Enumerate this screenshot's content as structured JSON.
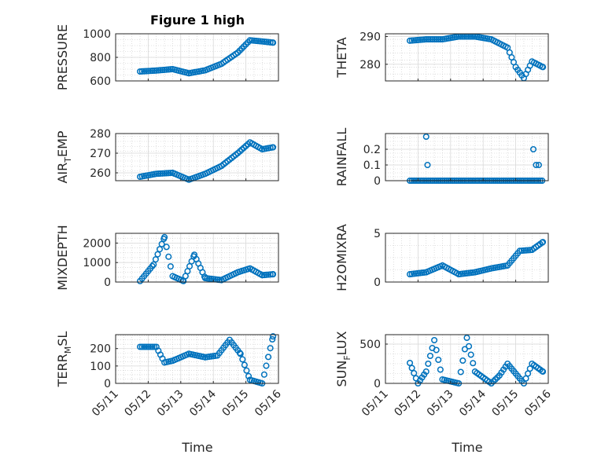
{
  "figure": {
    "xlabel": "Time",
    "x_ticks": [
      "2024-05-11",
      "2024-05-12",
      "2024-05-13",
      "2024-05-14",
      "2024-05-15",
      "2024-05-16"
    ],
    "x_tick_labels": [
      "05/11",
      "05/12",
      "05/13",
      "05/14",
      "05/15",
      "05/16"
    ],
    "marker_color": "#0072BD"
  },
  "chart_data": [
    {
      "type": "scatter",
      "title": "Figure 1 high",
      "ylabel": "PRESSURE",
      "xlim": [
        "2024-05-11",
        "2024-05-16"
      ],
      "ylim": [
        600,
        1000
      ],
      "yticks": [
        600,
        800,
        1000
      ],
      "grid": true,
      "x": [
        "2024-05-11T18:00",
        "2024-05-12T06:00",
        "2024-05-12T18:00",
        "2024-05-13T06:00",
        "2024-05-13T18:00",
        "2024-05-14T06:00",
        "2024-05-14T18:00",
        "2024-05-15T03:00",
        "2024-05-15T12:00",
        "2024-05-15T20:00"
      ],
      "y": [
        680,
        688,
        700,
        665,
        690,
        745,
        840,
        945,
        935,
        925
      ]
    },
    {
      "type": "scatter",
      "title": "",
      "ylabel": "THETA",
      "xlim": [
        "2024-05-11",
        "2024-05-16"
      ],
      "ylim": [
        274,
        291
      ],
      "yticks": [
        280,
        290
      ],
      "grid": true,
      "x": [
        "2024-05-11T18:00",
        "2024-05-12T06:00",
        "2024-05-12T18:00",
        "2024-05-13T06:00",
        "2024-05-13T18:00",
        "2024-05-14T06:00",
        "2024-05-14T18:00",
        "2024-05-15T00:00",
        "2024-05-15T06:00",
        "2024-05-15T12:00",
        "2024-05-15T20:00"
      ],
      "y": [
        288.5,
        289,
        289,
        290,
        290,
        289,
        286,
        279,
        275,
        281,
        279
      ]
    },
    {
      "type": "scatter",
      "title": "",
      "ylabel": "AIR_TEMP",
      "xlim": [
        "2024-05-11",
        "2024-05-16"
      ],
      "ylim": [
        256,
        280
      ],
      "yticks": [
        260,
        270,
        280
      ],
      "grid": true,
      "x": [
        "2024-05-11T18:00",
        "2024-05-12T06:00",
        "2024-05-12T18:00",
        "2024-05-13T06:00",
        "2024-05-13T18:00",
        "2024-05-14T06:00",
        "2024-05-14T18:00",
        "2024-05-15T03:00",
        "2024-05-15T12:00",
        "2024-05-15T20:00"
      ],
      "y": [
        258,
        259.5,
        260,
        256.5,
        259.5,
        263.5,
        270,
        275.5,
        272,
        273
      ]
    },
    {
      "type": "scatter",
      "title": "",
      "ylabel": "RAINFALL",
      "xlim": [
        "2024-05-11",
        "2024-05-16"
      ],
      "ylim": [
        0,
        0.3
      ],
      "yticks": [
        0,
        0.1,
        0.2
      ],
      "grid": true,
      "x": [
        "2024-05-12T06:00",
        "2024-05-12T07:00",
        "2024-05-15T13:00",
        "2024-05-15T15:00",
        "2024-05-15T17:00"
      ],
      "y": [
        0.28,
        0.1,
        0.2,
        0.1,
        0.1
      ],
      "baseline_zero": true
    },
    {
      "type": "scatter",
      "title": "",
      "ylabel": "MIXDEPTH",
      "xlim": [
        "2024-05-11",
        "2024-05-16"
      ],
      "ylim": [
        0,
        2500
      ],
      "yticks": [
        0,
        1000,
        2000
      ],
      "grid": true,
      "x": [
        "2024-05-11T18:00",
        "2024-05-12T04:00",
        "2024-05-12T12:00",
        "2024-05-12T18:00",
        "2024-05-13T02:00",
        "2024-05-13T10:00",
        "2024-05-13T18:00",
        "2024-05-14T06:00",
        "2024-05-14T18:00",
        "2024-05-15T03:00",
        "2024-05-15T12:00",
        "2024-05-15T20:00"
      ],
      "y": [
        50,
        900,
        2300,
        300,
        50,
        1400,
        200,
        100,
        500,
        700,
        350,
        400
      ]
    },
    {
      "type": "scatter",
      "title": "",
      "ylabel": "H2OMIXRA",
      "xlim": [
        "2024-05-11",
        "2024-05-16"
      ],
      "ylim": [
        0,
        5
      ],
      "yticks": [
        0,
        5
      ],
      "grid": true,
      "x": [
        "2024-05-11T18:00",
        "2024-05-12T06:00",
        "2024-05-12T18:00",
        "2024-05-13T06:00",
        "2024-05-13T18:00",
        "2024-05-14T06:00",
        "2024-05-14T18:00",
        "2024-05-15T03:00",
        "2024-05-15T12:00",
        "2024-05-15T20:00"
      ],
      "y": [
        0.8,
        1.0,
        1.7,
        0.8,
        1.0,
        1.4,
        1.7,
        3.2,
        3.3,
        4.1
      ]
    },
    {
      "type": "scatter",
      "title": "",
      "ylabel": "TERR_MSL",
      "xlim": [
        "2024-05-11",
        "2024-05-16"
      ],
      "ylim": [
        0,
        280
      ],
      "yticks": [
        0,
        100,
        200
      ],
      "grid": true,
      "x": [
        "2024-05-11T18:00",
        "2024-05-12T06:00",
        "2024-05-12T12:00",
        "2024-05-12T18:00",
        "2024-05-13T06:00",
        "2024-05-13T18:00",
        "2024-05-14T03:00",
        "2024-05-14T12:00",
        "2024-05-14T20:00",
        "2024-05-15T03:00",
        "2024-05-15T12:00",
        "2024-05-15T20:00"
      ],
      "y": [
        210,
        210,
        120,
        130,
        170,
        150,
        160,
        250,
        170,
        20,
        0,
        270
      ]
    },
    {
      "type": "scatter",
      "title": "",
      "ylabel": "SUN_FLUX",
      "xlim": [
        "2024-05-11",
        "2024-05-16"
      ],
      "ylim": [
        0,
        620
      ],
      "yticks": [
        0,
        500
      ],
      "grid": true,
      "x": [
        "2024-05-11T18:00",
        "2024-05-12T00:00",
        "2024-05-12T06:00",
        "2024-05-12T12:00",
        "2024-05-12T18:00",
        "2024-05-13T06:00",
        "2024-05-13T12:00",
        "2024-05-13T18:00",
        "2024-05-14T06:00",
        "2024-05-14T12:00",
        "2024-05-14T18:00",
        "2024-05-15T06:00",
        "2024-05-15T12:00",
        "2024-05-15T20:00"
      ],
      "y": [
        260,
        0,
        150,
        550,
        50,
        0,
        580,
        150,
        0,
        100,
        250,
        0,
        250,
        150
      ]
    }
  ]
}
